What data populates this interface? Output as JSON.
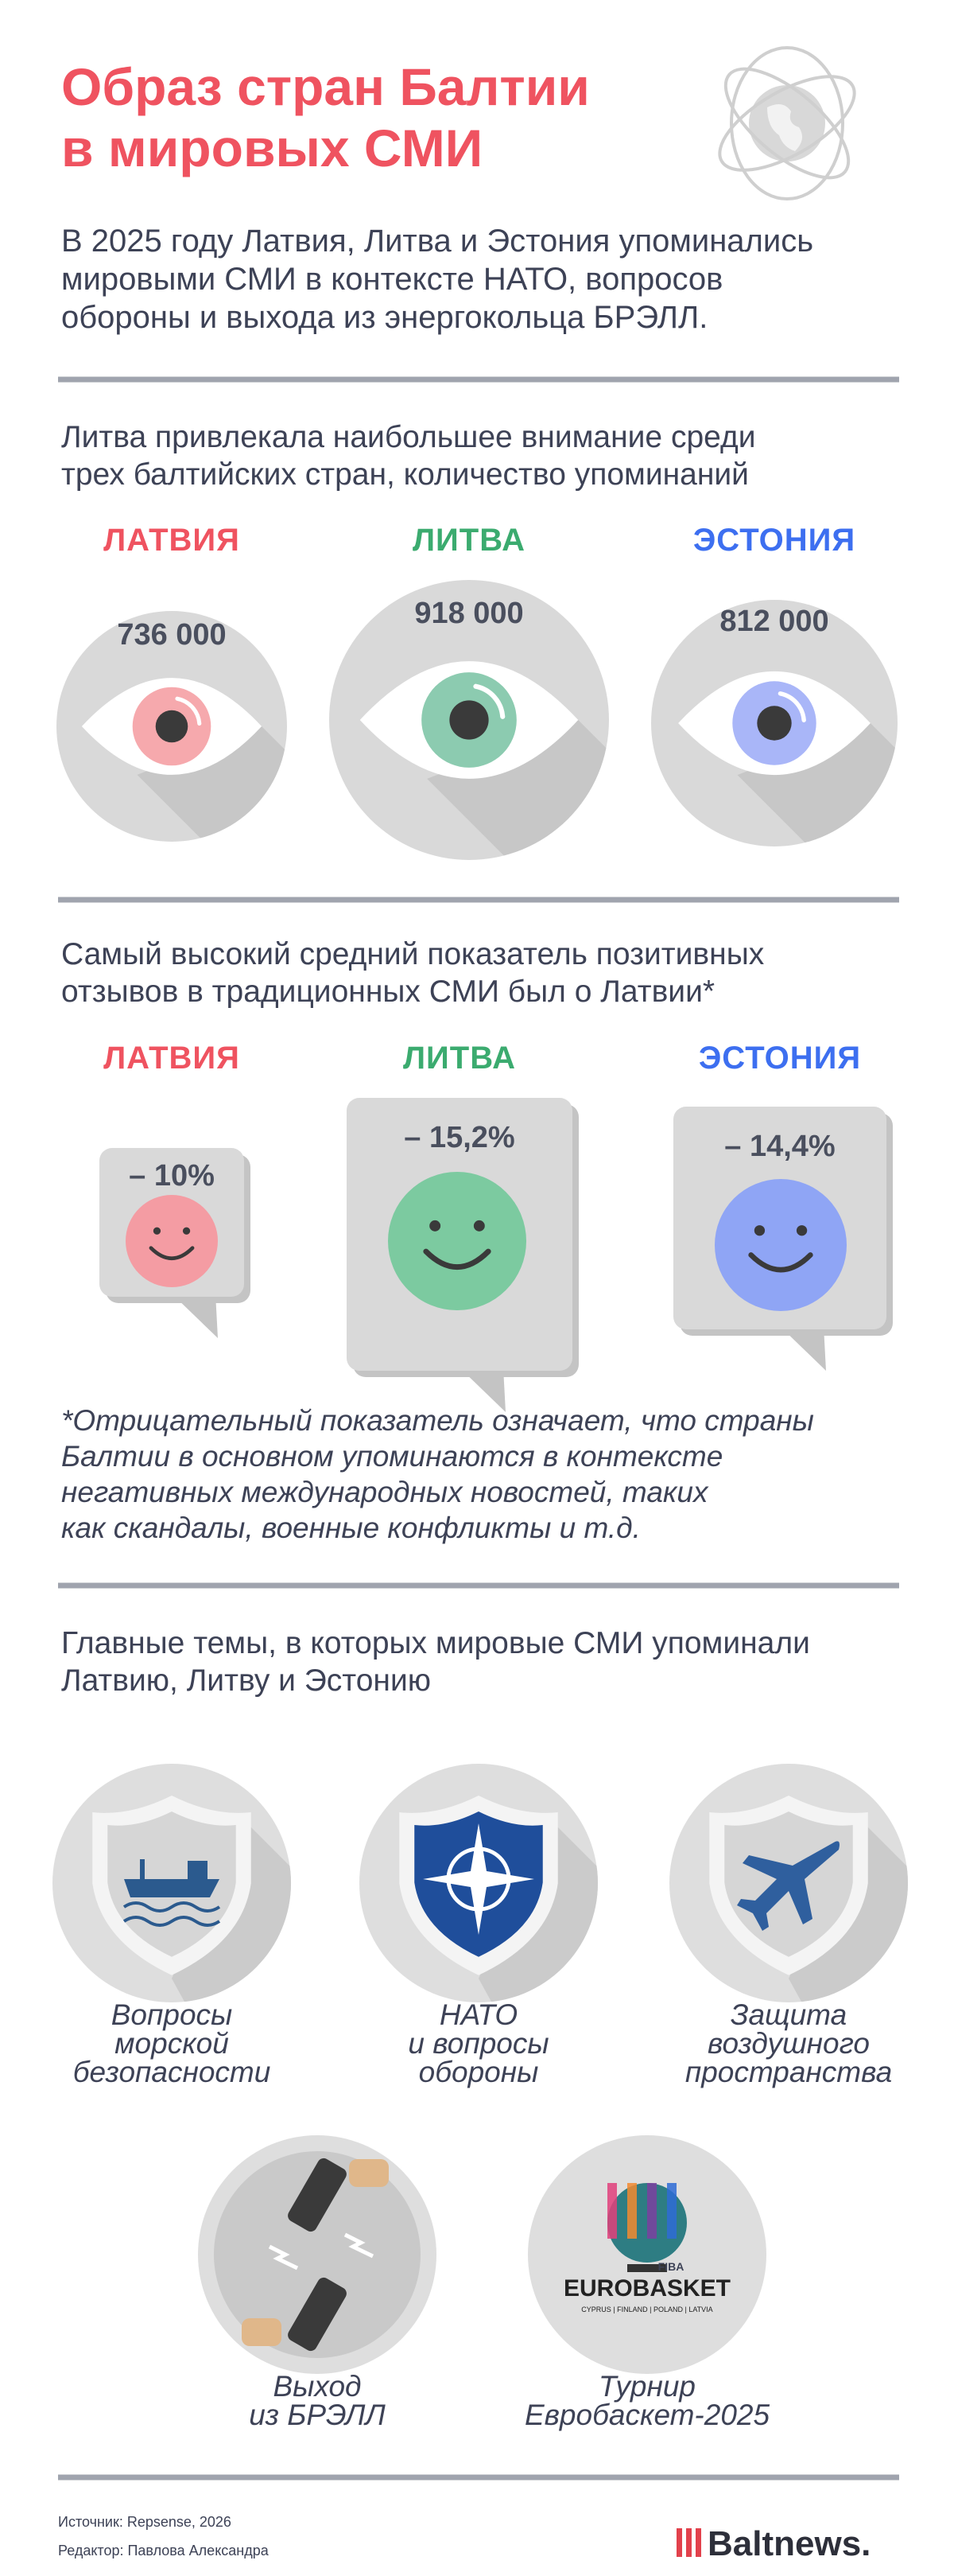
{
  "header": {
    "title": [
      "Образ стран Балтии",
      "в мировых СМИ"
    ],
    "intro": [
      "В 2025 году Латвия, Литва и Эстония упоминались",
      "мировыми СМИ в контексте НАТО, вопросов",
      "обороны и выхода из энергокольца БРЭЛЛ."
    ]
  },
  "mentions": {
    "heading": [
      "Литва привлекала наибольшее внимание среди",
      "трех балтийских стран, количество упоминаний"
    ],
    "items": [
      {
        "country": "ЛАТВИЯ",
        "color": "#ef5360",
        "fill": "#f6a9ad",
        "value": "736 000"
      },
      {
        "country": "ЛИТВА",
        "color": "#3bab6f",
        "fill": "#8ccbb0",
        "value": "918 000"
      },
      {
        "country": "ЭСТОНИЯ",
        "color": "#3d6ff0",
        "fill": "#a9b6f8",
        "value": "812 000"
      }
    ]
  },
  "sentiment": {
    "heading": [
      "Самый высокий средний показатель позитивных",
      "отзывов в традиционных СМИ был о Латвии*"
    ],
    "items": [
      {
        "country": "ЛАТВИЯ",
        "color": "#ef5360",
        "fill": "#f49ca3",
        "value": "– 10%"
      },
      {
        "country": "ЛИТВА",
        "color": "#3bab6f",
        "fill": "#7ccaa0",
        "value": "– 15,2%"
      },
      {
        "country": "ЭСТОНИЯ",
        "color": "#3d6ff0",
        "fill": "#8fa5f5",
        "value": "– 14,4%"
      }
    ],
    "footnote": [
      "*Отрицательный показатель означает, что страны",
      "Балтии в основном упоминаются в контексте",
      "негативных международных новостей, таких",
      "как скандалы, военные конфликты и т.д."
    ]
  },
  "topics": {
    "heading": [
      "Главные темы, в которых мировые СМИ упоминали",
      "Латвию, Литву и Эстонию"
    ],
    "items": [
      {
        "label": [
          "Вопросы",
          "морской",
          "безопасности"
        ]
      },
      {
        "label": [
          "НАТО",
          "и вопросы",
          "обороны"
        ]
      },
      {
        "label": [
          "Защита",
          "воздушного",
          "пространства"
        ]
      },
      {
        "label": [
          "Выход",
          "из БРЭЛЛ"
        ]
      },
      {
        "label": [
          "Турнир",
          "Евробаскет-2025"
        ],
        "emblem": [
          "FIBA",
          "EUROBASKET",
          "CYPRUS | FINLAND | POLAND | LATVIA"
        ]
      }
    ]
  },
  "footer": {
    "source": "Источник: Repsense, 2026",
    "editor": "Редактор: Павлова Александра",
    "logo": "Baltnews."
  }
}
